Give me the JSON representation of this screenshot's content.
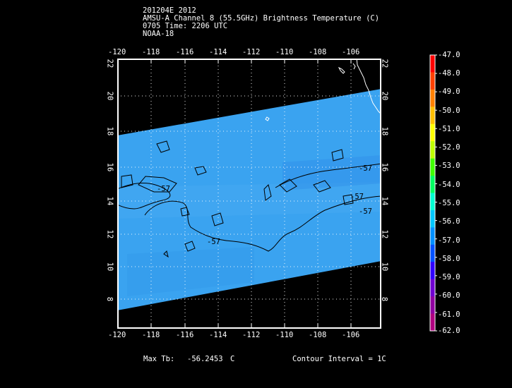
{
  "header": {
    "line1": "201204E 2012",
    "line2": "AMSU-A Channel 8 (55.5GHz) Brightness Temperature (C)",
    "line3": "0705 Time: 2206 UTC",
    "line4": "NOAA-18"
  },
  "map": {
    "lon_ticks": [
      "-120",
      "-118",
      "-116",
      "-114",
      "-112",
      "-110",
      "-108",
      "-106"
    ],
    "lat_ticks": [
      "8",
      "10",
      "12",
      "14",
      "16",
      "18",
      "20",
      "22"
    ],
    "contour_labels": [
      "-57",
      "-57",
      "-57",
      "-57",
      "-57"
    ],
    "swath_color": "#3aa3f0"
  },
  "colorbar": {
    "labels": [
      "-47.0",
      "-48.0",
      "-49.0",
      "-50.0",
      "-51.0",
      "-52.0",
      "-53.0",
      "-54.0",
      "-55.0",
      "-56.0",
      "-57.0",
      "-58.0",
      "-59.0",
      "-60.0",
      "-61.0",
      "-62.0"
    ],
    "colors": [
      "#ff0000",
      "#ff4000",
      "#ff8000",
      "#ffbf00",
      "#ffff00",
      "#bfff00",
      "#40ff00",
      "#00ff60",
      "#00ffd0",
      "#00c8ff",
      "#0090ff",
      "#0050ff",
      "#3000ff",
      "#7000d0",
      "#9000a0",
      "#b00080"
    ]
  },
  "footer": {
    "max_label": "Max Tb:",
    "max_value": "-56.2453",
    "max_unit": "C",
    "contour_interval": "Contour Interval = 1C"
  }
}
